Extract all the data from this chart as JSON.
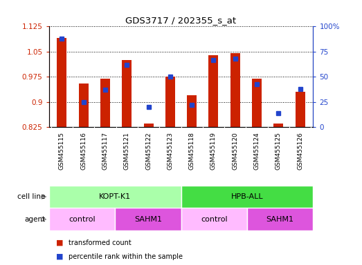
{
  "title": "GDS3717 / 202355_s_at",
  "samples": [
    "GSM455115",
    "GSM455116",
    "GSM455117",
    "GSM455121",
    "GSM455122",
    "GSM455123",
    "GSM455118",
    "GSM455119",
    "GSM455120",
    "GSM455124",
    "GSM455125",
    "GSM455126"
  ],
  "red_values": [
    1.09,
    0.955,
    0.97,
    1.025,
    0.835,
    0.975,
    0.92,
    1.04,
    1.045,
    0.97,
    0.835,
    0.93
  ],
  "blue_values_pct": [
    88,
    25,
    37,
    62,
    20,
    50,
    22,
    67,
    68,
    43,
    14,
    38
  ],
  "ylim_left": [
    0.825,
    1.125
  ],
  "ylim_right": [
    0,
    100
  ],
  "yticks_left": [
    0.825,
    0.9,
    0.975,
    1.05,
    1.125
  ],
  "yticks_right": [
    0,
    25,
    50,
    75,
    100
  ],
  "ytick_labels_left": [
    "0.825",
    "0.9",
    "0.975",
    "1.05",
    "1.125"
  ],
  "ytick_labels_right": [
    "0",
    "25",
    "50",
    "75",
    "100%"
  ],
  "red_color": "#CC2200",
  "blue_color": "#2244CC",
  "bar_bottom": 0.825,
  "cell_line_groups": [
    {
      "label": "KOPT-K1",
      "start": 0,
      "end": 6,
      "color": "#AAFFAA"
    },
    {
      "label": "HPB-ALL",
      "start": 6,
      "end": 12,
      "color": "#44DD44"
    }
  ],
  "agent_groups": [
    {
      "label": "control",
      "start": 0,
      "end": 3,
      "color": "#FFBBFF"
    },
    {
      "label": "SAHM1",
      "start": 3,
      "end": 6,
      "color": "#DD55DD"
    },
    {
      "label": "control",
      "start": 6,
      "end": 9,
      "color": "#FFBBFF"
    },
    {
      "label": "SAHM1",
      "start": 9,
      "end": 12,
      "color": "#DD55DD"
    }
  ],
  "legend_items": [
    {
      "label": "transformed count",
      "color": "#CC2200"
    },
    {
      "label": "percentile rank within the sample",
      "color": "#2244CC"
    }
  ],
  "bar_width": 0.45,
  "xtick_bg": "#D8D8D8",
  "plot_bg": "#FFFFFF"
}
